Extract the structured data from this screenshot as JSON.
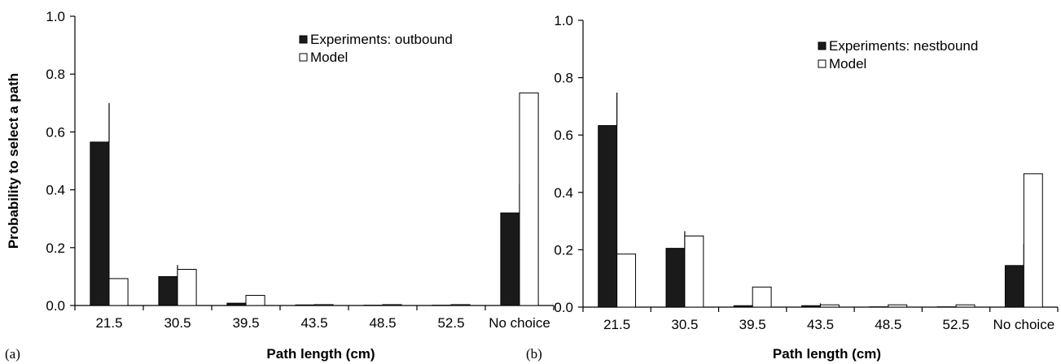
{
  "chart_data": [
    {
      "type": "bar",
      "panel_label": "(a)",
      "categories": [
        "21.5",
        "30.5",
        "39.5",
        "43.5",
        "48.5",
        "52.5",
        "No choice"
      ],
      "series": [
        {
          "name": "Experiments: outbound",
          "values": [
            0.565,
            0.1,
            0.008,
            0.002,
            0.001,
            0.001,
            0.32
          ],
          "error": [
            0.135,
            0.04,
            0.005,
            0,
            0,
            0,
            0.1
          ],
          "color": "#1a1a1a"
        },
        {
          "name": "Model",
          "values": [
            0.093,
            0.125,
            0.035,
            0.003,
            0.003,
            0.003,
            0.735
          ],
          "color": "#ffffff"
        }
      ],
      "xlabel": "Path length (cm)",
      "ylabel": "Probability to select a path",
      "ylim": [
        0,
        1.0
      ],
      "yticks": [
        "0.0",
        "0.2",
        "0.4",
        "0.6",
        "0.8",
        "1.0"
      ],
      "legend_position": "top-right"
    },
    {
      "type": "bar",
      "panel_label": "(b)",
      "categories": [
        "21.5",
        "30.5",
        "39.5",
        "43.5",
        "48.5",
        "52.5",
        "No choice"
      ],
      "series": [
        {
          "name": "Experiments: nestbound",
          "values": [
            0.633,
            0.205,
            0.005,
            0.005,
            0.001,
            0.001,
            0.145
          ],
          "error": [
            0.115,
            0.06,
            0.003,
            0.008,
            0,
            0,
            0.075
          ],
          "color": "#1a1a1a"
        },
        {
          "name": "Model",
          "values": [
            0.185,
            0.248,
            0.07,
            0.008,
            0.008,
            0.008,
            0.465
          ],
          "color": "#ffffff"
        }
      ],
      "xlabel": "Path length (cm)",
      "ylabel": "",
      "ylim": [
        0,
        1.0
      ],
      "yticks": [
        "0.0",
        "0.2",
        "0.4",
        "0.6",
        "0.8",
        "1.0"
      ],
      "legend_position": "top-right"
    }
  ]
}
